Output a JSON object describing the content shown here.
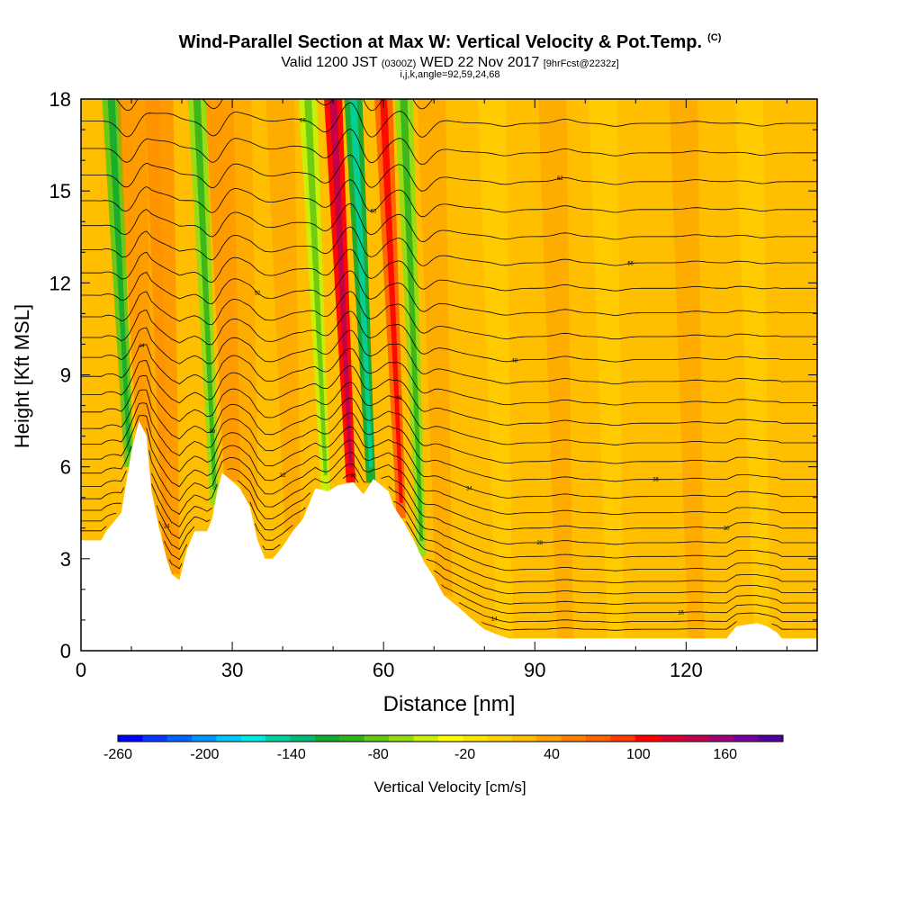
{
  "title": {
    "main": "Wind-Parallel Section at Max W: Vertical Velocity & Pot.Temp.",
    "copyright": "(C)",
    "valid_prefix": "Valid 1200 JST",
    "valid_utc": "(0300Z)",
    "valid_date": "WED 22 Nov 2017",
    "forecast": "[9hrFcst@2232z]",
    "params": "i,j,k,angle=92,59,24,68"
  },
  "chart_data": {
    "type": "heatmap",
    "xlabel": "Distance [nm]",
    "ylabel": "Height [Kft MSL]",
    "xlim": [
      0,
      146
    ],
    "ylim": [
      0,
      18
    ],
    "x_ticks": [
      0,
      30,
      60,
      90,
      120
    ],
    "y_ticks": [
      0,
      3,
      6,
      9,
      12,
      15,
      18
    ],
    "background_w": 20,
    "w_bands": [
      {
        "x": 9.5,
        "w": -80
      },
      {
        "x": 12.5,
        "w": 50
      },
      {
        "x": 15.5,
        "w": 40
      },
      {
        "x": 18.0,
        "w": 50
      },
      {
        "x": 26.5,
        "w": -60
      },
      {
        "x": 30.0,
        "w": 60
      },
      {
        "x": 33.5,
        "w": 40
      },
      {
        "x": 42.0,
        "w": 30
      },
      {
        "x": 48.5,
        "w": -40
      },
      {
        "x": 53.5,
        "w": 110
      },
      {
        "x": 57.5,
        "w": -110
      },
      {
        "x": 63.5,
        "w": 70
      },
      {
        "x": 67.5,
        "w": -60
      },
      {
        "x": 72.0,
        "w": 30
      },
      {
        "x": 84.0,
        "w": 5
      },
      {
        "x": 96.0,
        "w": 40
      },
      {
        "x": 106.0,
        "w": 5
      },
      {
        "x": 122.0,
        "w": 30
      },
      {
        "x": 135.0,
        "w": 5
      }
    ],
    "terrain": [
      [
        0,
        3.6
      ],
      [
        4,
        3.6
      ],
      [
        5,
        3.9
      ],
      [
        8,
        4.5
      ],
      [
        9,
        5.5
      ],
      [
        10,
        6.5
      ],
      [
        11.5,
        7.5
      ],
      [
        13,
        7.0
      ],
      [
        14,
        5.2
      ],
      [
        15.5,
        4.0
      ],
      [
        17,
        3.0
      ],
      [
        18,
        2.5
      ],
      [
        19.5,
        2.3
      ],
      [
        21,
        3.3
      ],
      [
        22.5,
        3.9
      ],
      [
        25,
        3.9
      ],
      [
        26,
        4.3
      ],
      [
        27,
        5.2
      ],
      [
        28,
        5.8
      ],
      [
        29.5,
        5.6
      ],
      [
        31.5,
        5.3
      ],
      [
        33.5,
        4.7
      ],
      [
        35,
        3.6
      ],
      [
        36.5,
        3.0
      ],
      [
        38,
        3.0
      ],
      [
        40,
        3.4
      ],
      [
        42,
        3.9
      ],
      [
        44,
        4.3
      ],
      [
        46.5,
        5.3
      ],
      [
        49,
        5.2
      ],
      [
        51,
        5.4
      ],
      [
        54,
        5.5
      ],
      [
        56,
        5.1
      ],
      [
        58,
        5.6
      ],
      [
        61,
        5.2
      ],
      [
        62,
        4.7
      ],
      [
        64,
        4.2
      ],
      [
        66,
        3.6
      ],
      [
        68,
        2.9
      ],
      [
        70,
        2.4
      ],
      [
        72,
        1.8
      ],
      [
        75,
        1.4
      ],
      [
        77,
        1.1
      ],
      [
        80,
        0.7
      ],
      [
        83,
        0.5
      ],
      [
        85,
        0.4
      ],
      [
        128,
        0.4
      ],
      [
        130,
        0.8
      ],
      [
        134,
        0.9
      ],
      [
        136,
        0.8
      ],
      [
        138,
        0.6
      ],
      [
        139,
        0.4
      ],
      [
        146,
        0.4
      ]
    ],
    "theta_contours": {
      "levels": [
        10,
        12,
        14,
        16,
        18,
        20,
        22,
        24,
        26,
        28,
        30,
        32,
        34,
        36,
        38,
        40,
        42,
        44,
        46,
        48,
        50,
        52,
        54,
        56,
        58,
        60,
        62,
        64,
        66,
        68
      ],
      "labels_shown": [
        "10",
        "14",
        "16",
        "18",
        "20",
        "24",
        "26",
        "28",
        "30",
        "32",
        "34",
        "36",
        "38",
        "40",
        "44",
        "48",
        "52",
        "56",
        "60",
        "62",
        "66",
        "68"
      ]
    },
    "colorbar": {
      "label": "Vertical Velocity [cm/s]",
      "range": [
        -260,
        200
      ],
      "tick_labels": [
        "-260",
        "-200",
        "-140",
        "-80",
        "-20",
        "40",
        "100",
        "160"
      ],
      "tick_values": [
        -260,
        -200,
        -140,
        -80,
        -20,
        40,
        100,
        160
      ],
      "colors": [
        "#0000ff",
        "#0a37ff",
        "#0064ff",
        "#0096ff",
        "#00c8ff",
        "#00ebe6",
        "#00d2a0",
        "#00be78",
        "#14aa32",
        "#32b41e",
        "#64c814",
        "#96dc14",
        "#c8f00a",
        "#ffff00",
        "#ffe600",
        "#ffd200",
        "#ffbe00",
        "#ffa000",
        "#ff8200",
        "#ff6400",
        "#ff3c00",
        "#ff0000",
        "#dc0032",
        "#be0050",
        "#a00078",
        "#7800a0",
        "#5000a0"
      ]
    }
  }
}
